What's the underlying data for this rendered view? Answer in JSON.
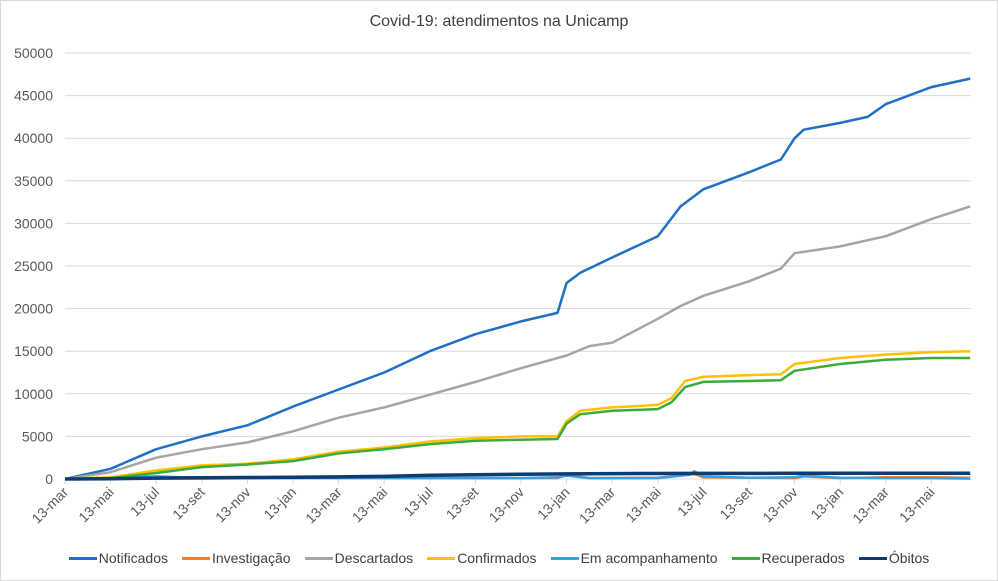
{
  "chart_data": {
    "type": "line",
    "title": "Covid-19: atendimentos  na Unicamp",
    "xlabel": "",
    "ylabel": "",
    "ylim": [
      0,
      50000
    ],
    "yticks": [
      0,
      5000,
      10000,
      15000,
      20000,
      25000,
      30000,
      35000,
      40000,
      45000,
      50000
    ],
    "xticks": [
      "13-mar",
      "13-mai",
      "13-jul",
      "13-set",
      "13-nov",
      "13-jan",
      "13-mar",
      "13-mai",
      "13-jul",
      "13-set",
      "13-nov",
      "13-jan",
      "13-mar",
      "13-mai",
      "13-jul",
      "13-set",
      "13-nov",
      "13-jan",
      "13-mar",
      "13-mai"
    ],
    "x_unit": "tick index (2-month steps)",
    "grid": true,
    "legend": "bottom",
    "series": [
      {
        "name": "Notificados",
        "color": "#1f6fc6",
        "points": [
          [
            0,
            0
          ],
          [
            1,
            1200
          ],
          [
            2,
            3500
          ],
          [
            3,
            5000
          ],
          [
            4,
            6300
          ],
          [
            5,
            8500
          ],
          [
            6,
            10500
          ],
          [
            7,
            12500
          ],
          [
            8,
            15000
          ],
          [
            9,
            17000
          ],
          [
            10,
            18500
          ],
          [
            10.8,
            19500
          ],
          [
            11,
            23000
          ],
          [
            11.3,
            24200
          ],
          [
            12,
            26000
          ],
          [
            13,
            28500
          ],
          [
            13.5,
            32000
          ],
          [
            14,
            34000
          ],
          [
            15,
            36000
          ],
          [
            15.7,
            37500
          ],
          [
            16,
            40000
          ],
          [
            16.2,
            41000
          ],
          [
            17,
            41800
          ],
          [
            17.6,
            42500
          ],
          [
            18,
            44000
          ],
          [
            19,
            46000
          ],
          [
            19.85,
            47000
          ]
        ]
      },
      {
        "name": "Investigação",
        "color": "#ed7d31",
        "points": [
          [
            0,
            0
          ],
          [
            1,
            100
          ],
          [
            3,
            50
          ],
          [
            5,
            150
          ],
          [
            7,
            150
          ],
          [
            9,
            100
          ],
          [
            10.8,
            100
          ],
          [
            11,
            500
          ],
          [
            11.5,
            100
          ],
          [
            13,
            150
          ],
          [
            13.8,
            600
          ],
          [
            14,
            200
          ],
          [
            15,
            150
          ],
          [
            16,
            100
          ],
          [
            16.2,
            300
          ],
          [
            17,
            100
          ],
          [
            18,
            200
          ],
          [
            19,
            200
          ],
          [
            19.85,
            150
          ]
        ]
      },
      {
        "name": "Descartados",
        "color": "#a5a5a5",
        "points": [
          [
            0,
            0
          ],
          [
            1,
            800
          ],
          [
            2,
            2500
          ],
          [
            3,
            3500
          ],
          [
            4,
            4300
          ],
          [
            5,
            5600
          ],
          [
            6,
            7200
          ],
          [
            7,
            8400
          ],
          [
            8,
            9900
          ],
          [
            9,
            11400
          ],
          [
            10,
            13000
          ],
          [
            11,
            14500
          ],
          [
            11.5,
            15600
          ],
          [
            12,
            16000
          ],
          [
            13,
            18800
          ],
          [
            13.5,
            20300
          ],
          [
            14,
            21500
          ],
          [
            15,
            23200
          ],
          [
            15.7,
            24700
          ],
          [
            16,
            26500
          ],
          [
            17,
            27300
          ],
          [
            18,
            28500
          ],
          [
            19,
            30500
          ],
          [
            19.85,
            32000
          ]
        ]
      },
      {
        "name": "Confirmados",
        "color": "#ffc000",
        "points": [
          [
            0,
            0
          ],
          [
            1,
            200
          ],
          [
            2,
            1000
          ],
          [
            3,
            1600
          ],
          [
            4,
            1800
          ],
          [
            5,
            2300
          ],
          [
            6,
            3200
          ],
          [
            7,
            3700
          ],
          [
            8,
            4400
          ],
          [
            9,
            4800
          ],
          [
            10,
            5000
          ],
          [
            10.8,
            5000
          ],
          [
            11,
            6800
          ],
          [
            11.3,
            8000
          ],
          [
            12,
            8400
          ],
          [
            13,
            8700
          ],
          [
            13.3,
            9500
          ],
          [
            13.6,
            11500
          ],
          [
            14,
            12000
          ],
          [
            15,
            12200
          ],
          [
            15.7,
            12300
          ],
          [
            16,
            13500
          ],
          [
            17,
            14200
          ],
          [
            18,
            14600
          ],
          [
            19,
            14900
          ],
          [
            19.85,
            15000
          ]
        ]
      },
      {
        "name": "Em acompanhamento",
        "color": "#3ba0dd",
        "points": [
          [
            0,
            0
          ],
          [
            1,
            100
          ],
          [
            2,
            300
          ],
          [
            3,
            100
          ],
          [
            5,
            100
          ],
          [
            7,
            100
          ],
          [
            10,
            100
          ],
          [
            10.8,
            200
          ],
          [
            11,
            400
          ],
          [
            11.5,
            100
          ],
          [
            13,
            100
          ],
          [
            13.7,
            500
          ],
          [
            13.8,
            900
          ],
          [
            14,
            300
          ],
          [
            15,
            150
          ],
          [
            16,
            200
          ],
          [
            16.2,
            400
          ],
          [
            17,
            150
          ],
          [
            18,
            100
          ],
          [
            19,
            100
          ],
          [
            19.85,
            50
          ]
        ]
      },
      {
        "name": "Recuperados",
        "color": "#3cab3c",
        "points": [
          [
            0,
            0
          ],
          [
            1,
            100
          ],
          [
            2,
            700
          ],
          [
            3,
            1400
          ],
          [
            4,
            1700
          ],
          [
            5,
            2100
          ],
          [
            6,
            3000
          ],
          [
            7,
            3500
          ],
          [
            8,
            4100
          ],
          [
            9,
            4500
          ],
          [
            10,
            4600
          ],
          [
            10.8,
            4700
          ],
          [
            11,
            6500
          ],
          [
            11.3,
            7600
          ],
          [
            12,
            8000
          ],
          [
            13,
            8200
          ],
          [
            13.3,
            9000
          ],
          [
            13.6,
            10800
          ],
          [
            14,
            11400
          ],
          [
            15,
            11500
          ],
          [
            15.7,
            11600
          ],
          [
            16,
            12700
          ],
          [
            17,
            13500
          ],
          [
            18,
            14000
          ],
          [
            19,
            14200
          ],
          [
            19.85,
            14200
          ]
        ]
      },
      {
        "name": "Óbitos",
        "color": "#0d3b73",
        "points": [
          [
            0,
            0
          ],
          [
            1,
            30
          ],
          [
            2,
            100
          ],
          [
            3,
            150
          ],
          [
            4,
            180
          ],
          [
            5,
            200
          ],
          [
            6,
            250
          ],
          [
            7,
            300
          ],
          [
            8,
            450
          ],
          [
            9,
            500
          ],
          [
            10,
            550
          ],
          [
            11,
            600
          ],
          [
            12,
            630
          ],
          [
            14,
            660
          ],
          [
            16,
            670
          ],
          [
            19.85,
            680
          ]
        ]
      }
    ]
  }
}
